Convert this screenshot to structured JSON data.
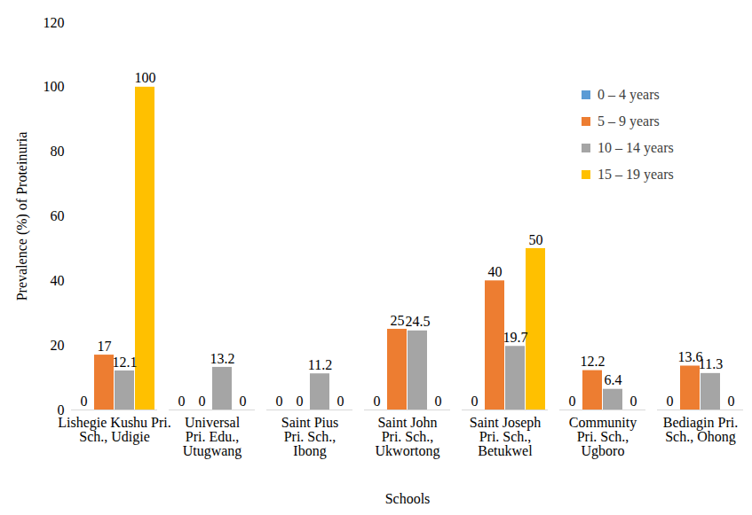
{
  "chart_data": {
    "type": "bar",
    "x_label": "Schools",
    "y_label": "Prevalence (%) of Proteinuria",
    "categories": [
      "Lishegie Kushu Pri.\nSch., Udigie",
      "Universal\nPri. Edu.,\nUtugwang",
      "Saint Pius\nPri. Sch.,\nIbong",
      "Saint John\nPri. Sch.,\nUkwortong",
      "Saint Joseph\nPri. Sch.,\nBetukwel",
      "Community\nPri. Sch.,\nUgboro",
      "Bediagin Pri.\nSch., Ohong"
    ],
    "series": [
      {
        "name": "0 – 4 years",
        "color": "#5b9bd5",
        "values": [
          0,
          0,
          0,
          0,
          0,
          0,
          0
        ]
      },
      {
        "name": "5 – 9 years",
        "color": "#ed7d31",
        "values": [
          17,
          0,
          0,
          25,
          40,
          12.2,
          13.6
        ]
      },
      {
        "name": "10 – 14 years",
        "color": "#a5a5a5",
        "values": [
          12.1,
          13.2,
          11.2,
          24.5,
          19.7,
          6.4,
          11.3
        ]
      },
      {
        "name": "15 – 19 years",
        "color": "#ffc000",
        "values": [
          100,
          0,
          0,
          0,
          50,
          0,
          0
        ]
      }
    ],
    "ylim": [
      0,
      120
    ],
    "yticks": [
      0,
      20,
      40,
      60,
      80,
      100,
      120
    ],
    "grid": false,
    "legend": "right",
    "data_labels": true
  }
}
